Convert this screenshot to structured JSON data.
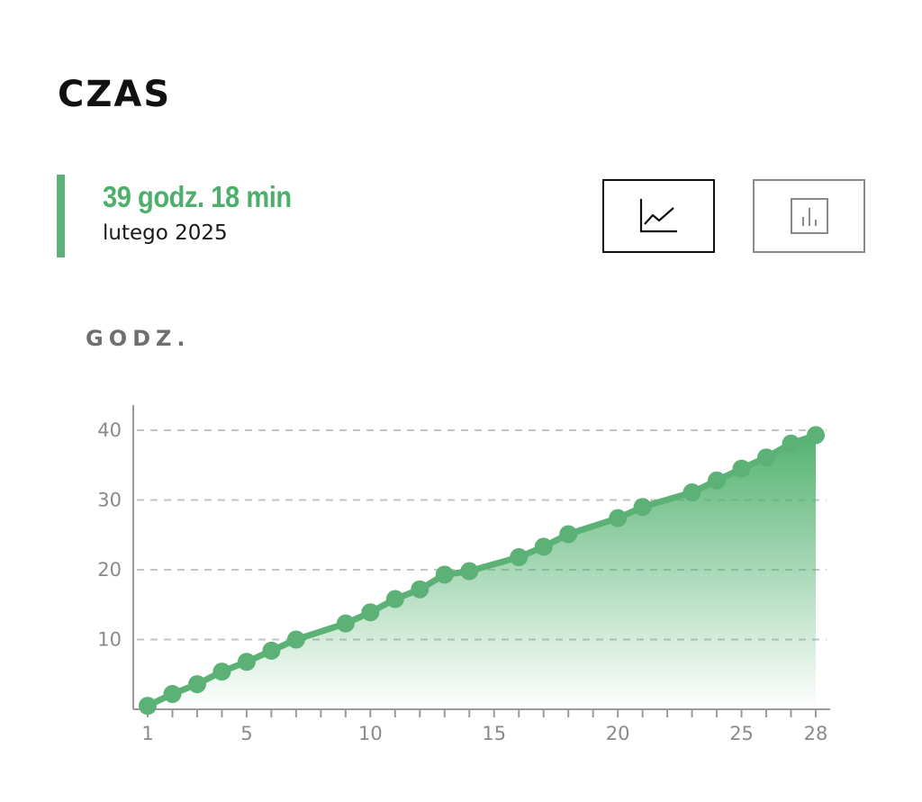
{
  "header": {
    "title": "CZAS"
  },
  "summary": {
    "total": "39 godz. 18 min",
    "period": "lutego 2025"
  },
  "view_toggle": {
    "active": "line",
    "buttons": [
      {
        "id": "line",
        "icon": "line-chart-icon"
      },
      {
        "id": "bar",
        "icon": "bar-chart-icon"
      }
    ]
  },
  "colors": {
    "accent": "#5cb176",
    "line": "#5cb176",
    "fill_top": "#4caf6a",
    "grid": "#c4c4c4",
    "axis": "#9a9a9a",
    "text": "#111111",
    "muted": "#8a8a8a"
  },
  "chart_data": {
    "type": "area",
    "ylabel": "GODZ.",
    "xlim": [
      1,
      28
    ],
    "ylim": [
      0,
      42
    ],
    "x_ticks": [
      1,
      5,
      10,
      15,
      20,
      25,
      28
    ],
    "y_ticks": [
      10,
      20,
      30,
      40
    ],
    "grid": "horizontal dashed",
    "x": [
      1,
      2,
      3,
      4,
      5,
      6,
      7,
      9,
      10,
      11,
      12,
      13,
      14,
      16,
      17,
      18,
      20,
      21,
      23,
      24,
      25,
      26,
      27,
      28
    ],
    "values": [
      0.5,
      2.2,
      3.6,
      5.4,
      6.8,
      8.4,
      10.0,
      12.3,
      13.9,
      15.8,
      17.2,
      19.3,
      19.8,
      21.8,
      23.3,
      25.1,
      27.4,
      29.0,
      31.1,
      32.8,
      34.5,
      36.1,
      38.1,
      39.3
    ]
  }
}
